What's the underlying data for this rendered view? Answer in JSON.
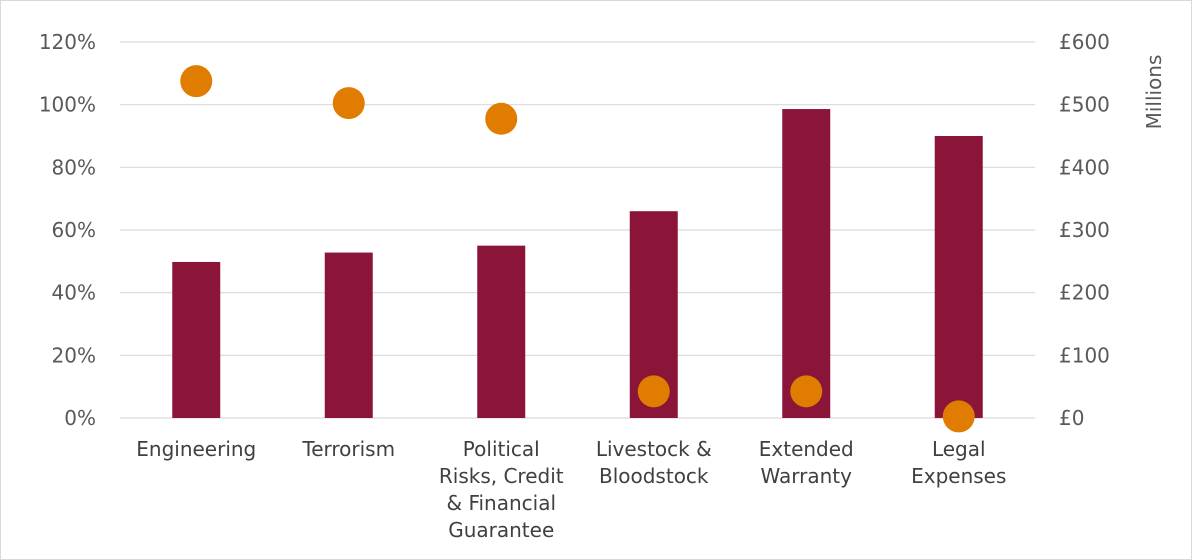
{
  "chart_data": {
    "type": "bar",
    "categories": [
      [
        "Engineering"
      ],
      [
        "Terrorism"
      ],
      [
        "Political",
        "Risks, Credit",
        "& Financial",
        "Guarantee"
      ],
      [
        "Livestock &",
        "Bloodstock"
      ],
      [
        "Extended",
        "Warranty"
      ],
      [
        "Legal",
        "Expenses"
      ]
    ],
    "series": [
      {
        "axis": "right",
        "kind": "bar",
        "color": "#8b1538",
        "values": [
          249,
          264,
          275,
          330,
          493,
          450
        ]
      },
      {
        "axis": "left",
        "kind": "scatter",
        "color": "#e07c00",
        "values": [
          107.5,
          100.5,
          95.5,
          8.5,
          8.5,
          0.5
        ]
      }
    ],
    "left_axis": {
      "ylim": [
        0,
        120
      ],
      "ticks": [
        "0%",
        "20%",
        "40%",
        "60%",
        "80%",
        "100%",
        "120%"
      ]
    },
    "right_axis": {
      "ylim": [
        0,
        600
      ],
      "ticks": [
        "£0",
        "£100",
        "£200",
        "£300",
        "£400",
        "£500",
        "£600"
      ],
      "label": "Millions"
    },
    "grid": true
  }
}
